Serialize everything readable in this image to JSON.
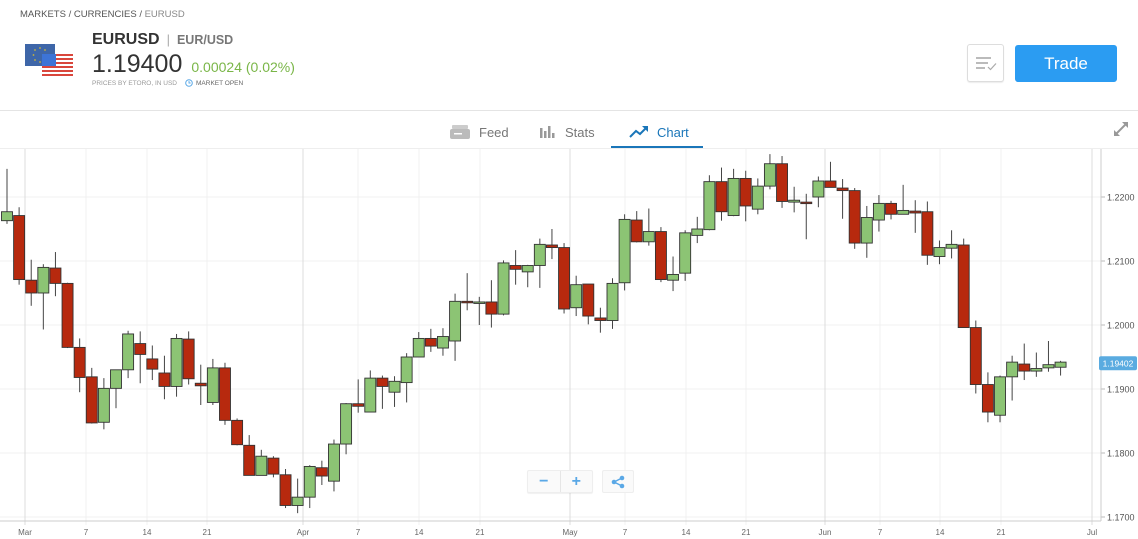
{
  "breadcrumb": {
    "items": [
      "MARKETS",
      "CURRENCIES",
      "EURUSD"
    ],
    "separator": "/"
  },
  "instrument": {
    "symbol": "EURUSD",
    "separator": "|",
    "pair": "EUR/USD",
    "price": "1.19400",
    "change": "0.00024 (0.02%)",
    "price_note": "PRICES BY ETORO, IN USD",
    "market_status": "MARKET OPEN",
    "change_color": "#7ab648",
    "flag_icon": "eu-us-flags-icon"
  },
  "actions": {
    "watchlist_icon": "list-check-icon",
    "trade_label": "Trade",
    "trade_color": "#2b9cf2"
  },
  "tabs": [
    {
      "label": "Feed",
      "icon": "feed-icon",
      "active": false
    },
    {
      "label": "Stats",
      "icon": "bar-stats-icon",
      "active": false
    },
    {
      "label": "Chart",
      "icon": "chart-trend-icon",
      "active": true
    }
  ],
  "chart_controls": {
    "zoom_out": "−",
    "zoom_in": "+",
    "share_icon": "share-icon",
    "expand_icon": "expand-icon"
  },
  "chart_data": {
    "type": "candlestick",
    "y_ticks": [
      "1.2200",
      "1.2100",
      "1.2000",
      "1.1900",
      "1.1800",
      "1.1700"
    ],
    "ylim": [
      1.1697,
      1.2277
    ],
    "x_tick_labels": [
      "Mar",
      "7",
      "14",
      "21",
      "Apr",
      "7",
      "14",
      "21",
      "May",
      "7",
      "14",
      "21",
      "Jun",
      "7",
      "14",
      "21",
      "Jul"
    ],
    "last_price_label": "1.19402",
    "last_price": 1.19402,
    "grid": true,
    "up_color": "#8cc474",
    "down_color": "#b7290e",
    "candles": [
      [
        1.2163,
        1.2244,
        1.2158,
        1.2177
      ],
      [
        1.2171,
        1.2184,
        1.2063,
        1.2071
      ],
      [
        1.207,
        1.2102,
        1.203,
        1.205
      ],
      [
        1.205,
        1.2095,
        1.1993,
        1.209
      ],
      [
        1.2089,
        1.2114,
        1.2045,
        1.2065
      ],
      [
        1.2065,
        1.2066,
        1.1964,
        1.1965
      ],
      [
        1.1965,
        1.1979,
        1.1895,
        1.1918
      ],
      [
        1.1919,
        1.1933,
        1.1846,
        1.1847
      ],
      [
        1.1848,
        1.1917,
        1.1837,
        1.1901
      ],
      [
        1.1901,
        1.193,
        1.187,
        1.193
      ],
      [
        1.193,
        1.1991,
        1.1917,
        1.1986
      ],
      [
        1.1971,
        1.199,
        1.1909,
        1.1954
      ],
      [
        1.1947,
        1.1968,
        1.1914,
        1.1931
      ],
      [
        1.1925,
        1.1952,
        1.1884,
        1.1904
      ],
      [
        1.1904,
        1.1986,
        1.1888,
        1.1979
      ],
      [
        1.1978,
        1.199,
        1.1907,
        1.1916
      ],
      [
        1.1909,
        1.1938,
        1.1875,
        1.1905
      ],
      [
        1.1879,
        1.1947,
        1.1875,
        1.1933
      ],
      [
        1.1933,
        1.1941,
        1.1844,
        1.1851
      ],
      [
        1.1851,
        1.1854,
        1.1812,
        1.1813
      ],
      [
        1.1812,
        1.1828,
        1.1765,
        1.1765
      ],
      [
        1.1765,
        1.1805,
        1.1765,
        1.1795
      ],
      [
        1.1792,
        1.1795,
        1.1762,
        1.1767
      ],
      [
        1.1766,
        1.1775,
        1.1714,
        1.1718
      ],
      [
        1.1718,
        1.176,
        1.1706,
        1.1731
      ],
      [
        1.1731,
        1.1781,
        1.1714,
        1.1779
      ],
      [
        1.1777,
        1.1788,
        1.175,
        1.1764
      ],
      [
        1.1756,
        1.1821,
        1.174,
        1.1814
      ],
      [
        1.1814,
        1.1878,
        1.1798,
        1.1877
      ],
      [
        1.1877,
        1.1915,
        1.1863,
        1.1873
      ],
      [
        1.1864,
        1.1929,
        1.1864,
        1.1917
      ],
      [
        1.1917,
        1.1921,
        1.1869,
        1.1904
      ],
      [
        1.1895,
        1.192,
        1.1872,
        1.1912
      ],
      [
        1.191,
        1.1956,
        1.1879,
        1.195
      ],
      [
        1.195,
        1.1989,
        1.195,
        1.1979
      ],
      [
        1.1979,
        1.1994,
        1.1958,
        1.1967
      ],
      [
        1.1964,
        1.1995,
        1.1952,
        1.1982
      ],
      [
        1.1975,
        1.2049,
        1.1944,
        1.2037
      ],
      [
        1.2037,
        1.2081,
        1.2023,
        1.2035
      ],
      [
        1.2034,
        1.2044,
        1.2,
        1.2036
      ],
      [
        1.2036,
        1.207,
        1.1996,
        1.2017
      ],
      [
        1.2017,
        1.2101,
        1.2015,
        1.2097
      ],
      [
        1.2093,
        1.2117,
        1.2063,
        1.2087
      ],
      [
        1.2083,
        1.2094,
        1.2059,
        1.2093
      ],
      [
        1.2093,
        1.2135,
        1.2058,
        1.2126
      ],
      [
        1.2125,
        1.215,
        1.2103,
        1.2121
      ],
      [
        1.2121,
        1.2128,
        1.2018,
        1.2025
      ],
      [
        1.2027,
        1.2077,
        1.2014,
        1.2063
      ],
      [
        1.2064,
        1.2064,
        1.2001,
        1.2014
      ],
      [
        1.2011,
        1.2027,
        1.1988,
        1.2007
      ],
      [
        1.2007,
        1.2073,
        1.1994,
        1.2065
      ],
      [
        1.2066,
        1.2173,
        1.2054,
        1.2165
      ],
      [
        1.2164,
        1.2178,
        1.2129,
        1.213
      ],
      [
        1.213,
        1.2182,
        1.2124,
        1.2146
      ],
      [
        1.2146,
        1.2153,
        1.2067,
        1.2071
      ],
      [
        1.207,
        1.2107,
        1.2053,
        1.2079
      ],
      [
        1.2081,
        1.2148,
        1.2069,
        1.2144
      ],
      [
        1.214,
        1.2169,
        1.2128,
        1.215
      ],
      [
        1.2149,
        1.2234,
        1.2148,
        1.2224
      ],
      [
        1.2224,
        1.2246,
        1.2163,
        1.2177
      ],
      [
        1.2171,
        1.2244,
        1.217,
        1.2229
      ],
      [
        1.2229,
        1.2241,
        1.2162,
        1.2186
      ],
      [
        1.2181,
        1.2229,
        1.2173,
        1.2217
      ],
      [
        1.2217,
        1.2267,
        1.2212,
        1.2252
      ],
      [
        1.2252,
        1.2264,
        1.2183,
        1.2193
      ],
      [
        1.2192,
        1.2216,
        1.2176,
        1.2195
      ],
      [
        1.2192,
        1.2205,
        1.2134,
        1.219
      ],
      [
        1.22,
        1.2232,
        1.2184,
        1.2225
      ],
      [
        1.2225,
        1.2255,
        1.2215,
        1.2215
      ],
      [
        1.2214,
        1.2228,
        1.2166,
        1.221
      ],
      [
        1.221,
        1.2214,
        1.2119,
        1.2128
      ],
      [
        1.2128,
        1.2186,
        1.2105,
        1.2168
      ],
      [
        1.2164,
        1.2203,
        1.2146,
        1.219
      ],
      [
        1.219,
        1.2194,
        1.2165,
        1.2173
      ],
      [
        1.2173,
        1.2219,
        1.2173,
        1.2179
      ],
      [
        1.2178,
        1.2195,
        1.2144,
        1.2175
      ],
      [
        1.2177,
        1.2193,
        1.2094,
        1.2109
      ],
      [
        1.2107,
        1.2132,
        1.2095,
        1.2121
      ],
      [
        1.212,
        1.2148,
        1.2104,
        1.2126
      ],
      [
        1.2125,
        1.2135,
        1.1996,
        1.1996
      ],
      [
        1.1996,
        1.2007,
        1.1893,
        1.1907
      ],
      [
        1.1907,
        1.1926,
        1.1848,
        1.1864
      ],
      [
        1.1859,
        1.1921,
        1.1848,
        1.1919
      ],
      [
        1.1919,
        1.1952,
        1.1882,
        1.1942
      ],
      [
        1.1939,
        1.1971,
        1.1914,
        1.1928
      ],
      [
        1.1928,
        1.1957,
        1.1919,
        1.1932
      ],
      [
        1.1933,
        1.1975,
        1.1927,
        1.1938
      ],
      [
        1.1934,
        1.1944,
        1.1921,
        1.1942
      ]
    ]
  }
}
